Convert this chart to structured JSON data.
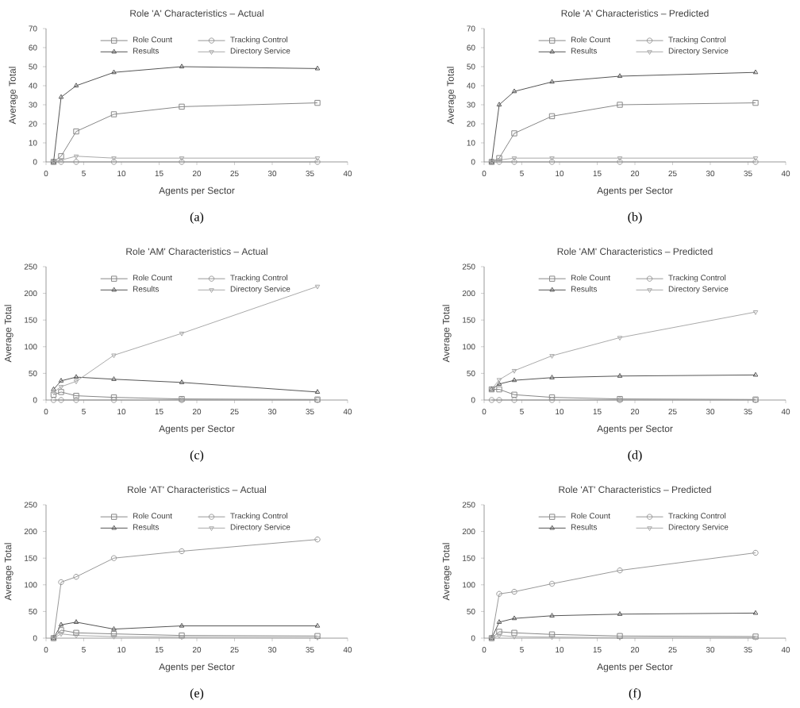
{
  "chart_data": [
    {
      "type": "line",
      "title": "Role 'A' Characteristics – Actual",
      "xlabel": "Agents per Sector",
      "ylabel": "Average Total",
      "annotations": [
        "(a)"
      ],
      "x": [
        1,
        2,
        4,
        9,
        18,
        36
      ],
      "xlim": [
        0,
        40
      ],
      "xticks": [
        0,
        5,
        10,
        15,
        20,
        25,
        30,
        35,
        40
      ],
      "ylim": [
        0,
        70
      ],
      "yticks": [
        0,
        10,
        20,
        30,
        40,
        50,
        60,
        70
      ],
      "legend": "top",
      "grid": false,
      "series": [
        {
          "name": "Role Count",
          "color": "#888888",
          "marker": "square",
          "values": [
            0,
            3,
            16,
            25,
            29,
            31
          ]
        },
        {
          "name": "Tracking Control",
          "color": "#999999",
          "marker": "circle",
          "values": [
            0,
            0,
            0,
            0,
            0,
            0
          ]
        },
        {
          "name": "Results",
          "color": "#555555",
          "marker": "triangle",
          "values": [
            0,
            34,
            40,
            47,
            50,
            49
          ]
        },
        {
          "name": "Directory Service",
          "color": "#aaaaaa",
          "marker": "triangle-down",
          "values": [
            0,
            1,
            3,
            2,
            2,
            2
          ]
        }
      ]
    },
    {
      "type": "line",
      "title": "Role 'A' Characteristics – Predicted",
      "xlabel": "Agents per Sector",
      "ylabel": "Average Total",
      "annotations": [
        "(b)"
      ],
      "x": [
        1,
        2,
        4,
        9,
        18,
        36
      ],
      "xlim": [
        0,
        40
      ],
      "xticks": [
        0,
        5,
        10,
        15,
        20,
        25,
        30,
        35,
        40
      ],
      "ylim": [
        0,
        70
      ],
      "yticks": [
        0,
        10,
        20,
        30,
        40,
        50,
        60,
        70
      ],
      "legend": "top",
      "grid": false,
      "series": [
        {
          "name": "Role Count",
          "color": "#888888",
          "marker": "square",
          "values": [
            0,
            2,
            15,
            24,
            30,
            31
          ]
        },
        {
          "name": "Tracking Control",
          "color": "#999999",
          "marker": "circle",
          "values": [
            0,
            0,
            0,
            0,
            0,
            0
          ]
        },
        {
          "name": "Results",
          "color": "#555555",
          "marker": "triangle",
          "values": [
            0,
            30,
            37,
            42,
            45,
            47
          ]
        },
        {
          "name": "Directory Service",
          "color": "#aaaaaa",
          "marker": "triangle-down",
          "values": [
            0,
            1,
            2,
            2,
            2,
            2
          ]
        }
      ]
    },
    {
      "type": "line",
      "title": "Role 'AM' Characteristics – Actual",
      "xlabel": "Agents per Sector",
      "ylabel": "Average Total",
      "annotations": [
        "(c)"
      ],
      "x": [
        1,
        2,
        4,
        9,
        18,
        36
      ],
      "xlim": [
        0,
        40
      ],
      "xticks": [
        0,
        5,
        10,
        15,
        20,
        25,
        30,
        35,
        40
      ],
      "ylim": [
        0,
        250
      ],
      "yticks": [
        0,
        50,
        100,
        150,
        200,
        250
      ],
      "legend": "top",
      "grid": false,
      "series": [
        {
          "name": "Role Count",
          "color": "#888888",
          "marker": "square",
          "values": [
            10,
            15,
            8,
            5,
            2,
            1
          ]
        },
        {
          "name": "Tracking Control",
          "color": "#999999",
          "marker": "circle",
          "values": [
            0,
            0,
            0,
            0,
            0,
            0
          ]
        },
        {
          "name": "Results",
          "color": "#555555",
          "marker": "triangle",
          "values": [
            20,
            36,
            43,
            39,
            33,
            15
          ]
        },
        {
          "name": "Directory Service",
          "color": "#aaaaaa",
          "marker": "triangle-down",
          "values": [
            15,
            25,
            35,
            84,
            125,
            213
          ]
        }
      ]
    },
    {
      "type": "line",
      "title": "Role 'AM' Characteristics – Predicted",
      "xlabel": "Agents per Sector",
      "ylabel": "Average Total",
      "annotations": [
        "(d)"
      ],
      "x": [
        1,
        2,
        4,
        9,
        18,
        36
      ],
      "xlim": [
        0,
        40
      ],
      "xticks": [
        0,
        5,
        10,
        15,
        20,
        25,
        30,
        35,
        40
      ],
      "ylim": [
        0,
        250
      ],
      "yticks": [
        0,
        50,
        100,
        150,
        200,
        250
      ],
      "legend": "top",
      "grid": false,
      "series": [
        {
          "name": "Role Count",
          "color": "#888888",
          "marker": "square",
          "values": [
            20,
            20,
            10,
            5,
            2,
            1
          ]
        },
        {
          "name": "Tracking Control",
          "color": "#999999",
          "marker": "circle",
          "values": [
            0,
            0,
            0,
            0,
            0,
            0
          ]
        },
        {
          "name": "Results",
          "color": "#555555",
          "marker": "triangle",
          "values": [
            20,
            30,
            37,
            42,
            45,
            47
          ]
        },
        {
          "name": "Directory Service",
          "color": "#aaaaaa",
          "marker": "triangle-down",
          "values": [
            20,
            38,
            55,
            83,
            117,
            165
          ]
        }
      ]
    },
    {
      "type": "line",
      "title": "Role 'AT' Characteristics – Actual",
      "xlabel": "Agents per Sector",
      "ylabel": "Average Total",
      "annotations": [
        "(e)"
      ],
      "x": [
        1,
        2,
        4,
        9,
        18,
        36
      ],
      "xlim": [
        0,
        40
      ],
      "xticks": [
        0,
        5,
        10,
        15,
        20,
        25,
        30,
        35,
        40
      ],
      "ylim": [
        0,
        250
      ],
      "yticks": [
        0,
        50,
        100,
        150,
        200,
        250
      ],
      "legend": "top",
      "grid": false,
      "series": [
        {
          "name": "Role Count",
          "color": "#888888",
          "marker": "square",
          "values": [
            0,
            15,
            10,
            8,
            5,
            4
          ]
        },
        {
          "name": "Tracking Control",
          "color": "#999999",
          "marker": "circle",
          "values": [
            0,
            105,
            115,
            150,
            163,
            185
          ]
        },
        {
          "name": "Results",
          "color": "#555555",
          "marker": "triangle",
          "values": [
            0,
            25,
            30,
            17,
            23,
            23
          ]
        },
        {
          "name": "Directory Service",
          "color": "#aaaaaa",
          "marker": "triangle-down",
          "values": [
            0,
            8,
            5,
            3,
            2,
            1
          ]
        }
      ]
    },
    {
      "type": "line",
      "title": "Role 'AT' Characteristics – Predicted",
      "xlabel": "Agents per Sector",
      "ylabel": "Average Total",
      "annotations": [
        "(f)"
      ],
      "x": [
        1,
        2,
        4,
        9,
        18,
        36
      ],
      "xlim": [
        0,
        40
      ],
      "xticks": [
        0,
        5,
        10,
        15,
        20,
        25,
        30,
        35,
        40
      ],
      "ylim": [
        0,
        250
      ],
      "yticks": [
        0,
        50,
        100,
        150,
        200,
        250
      ],
      "legend": "top",
      "grid": false,
      "series": [
        {
          "name": "Role Count",
          "color": "#888888",
          "marker": "square",
          "values": [
            0,
            12,
            10,
            7,
            4,
            3
          ]
        },
        {
          "name": "Tracking Control",
          "color": "#999999",
          "marker": "circle",
          "values": [
            0,
            83,
            87,
            102,
            127,
            160
          ]
        },
        {
          "name": "Results",
          "color": "#555555",
          "marker": "triangle",
          "values": [
            0,
            30,
            37,
            42,
            45,
            47
          ]
        },
        {
          "name": "Directory Service",
          "color": "#aaaaaa",
          "marker": "triangle-down",
          "values": [
            0,
            5,
            3,
            2,
            1,
            1
          ]
        }
      ]
    }
  ]
}
